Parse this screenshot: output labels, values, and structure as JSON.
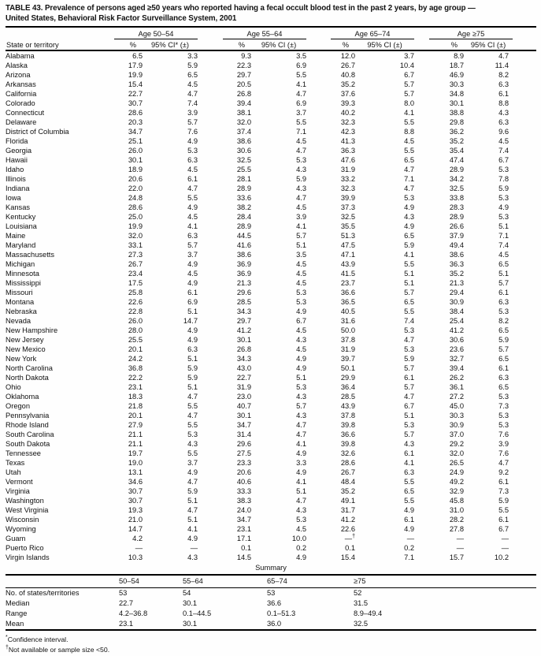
{
  "title_line1": "TABLE 43. Prevalence of persons aged ≥50 years who reported having a fecal occult blood test in the past 2 years, by age group —",
  "title_line2": "United States, Behavioral Risk Factor Surveillance System, 2001",
  "table": {
    "stub_header": "State or territory",
    "age_groups": [
      {
        "label": "Age 50–54",
        "pct_header": "%",
        "ci_header": "95% CI* (±)"
      },
      {
        "label": "Age 55–64",
        "pct_header": "%",
        "ci_header": "95% CI (±)"
      },
      {
        "label": "Age 65–74",
        "pct_header": "%",
        "ci_header": "95% CI (±)"
      },
      {
        "label": "Age ≥75",
        "pct_header": "%",
        "ci_header": "95% CI (±)"
      }
    ],
    "rows": [
      {
        "state": "Alabama",
        "values": [
          "6.5",
          "3.3",
          "9.3",
          "3.5",
          "12.0",
          "3.7",
          "8.9",
          "4.7"
        ]
      },
      {
        "state": "Alaska",
        "values": [
          "17.9",
          "5.9",
          "22.3",
          "6.9",
          "26.7",
          "10.4",
          "18.7",
          "11.4"
        ]
      },
      {
        "state": "Arizona",
        "values": [
          "19.9",
          "6.5",
          "29.7",
          "5.5",
          "40.8",
          "6.7",
          "46.9",
          "8.2"
        ]
      },
      {
        "state": "Arkansas",
        "values": [
          "15.4",
          "4.5",
          "20.5",
          "4.1",
          "35.2",
          "5.7",
          "30.3",
          "6.3"
        ]
      },
      {
        "state": "California",
        "values": [
          "22.7",
          "4.7",
          "26.8",
          "4.7",
          "37.6",
          "5.7",
          "34.8",
          "6.1"
        ]
      },
      {
        "state": "Colorado",
        "values": [
          "30.7",
          "7.4",
          "39.4",
          "6.9",
          "39.3",
          "8.0",
          "30.1",
          "8.8"
        ]
      },
      {
        "state": "Connecticut",
        "values": [
          "28.6",
          "3.9",
          "38.1",
          "3.7",
          "40.2",
          "4.1",
          "38.8",
          "4.3"
        ]
      },
      {
        "state": "Delaware",
        "values": [
          "20.3",
          "5.7",
          "32.0",
          "5.5",
          "32.3",
          "5.5",
          "29.8",
          "6.3"
        ]
      },
      {
        "state": "District of Columbia",
        "values": [
          "34.7",
          "7.6",
          "37.4",
          "7.1",
          "42.3",
          "8.8",
          "36.2",
          "9.6"
        ]
      },
      {
        "state": "Florida",
        "values": [
          "25.1",
          "4.9",
          "38.6",
          "4.5",
          "41.3",
          "4.5",
          "35.2",
          "4.5"
        ]
      },
      {
        "state": "Georgia",
        "values": [
          "26.0",
          "5.3",
          "30.6",
          "4.7",
          "36.3",
          "5.5",
          "35.4",
          "7.4"
        ]
      },
      {
        "state": "Hawaii",
        "values": [
          "30.1",
          "6.3",
          "32.5",
          "5.3",
          "47.6",
          "6.5",
          "47.4",
          "6.7"
        ]
      },
      {
        "state": "Idaho",
        "values": [
          "18.9",
          "4.5",
          "25.5",
          "4.3",
          "31.9",
          "4.7",
          "28.9",
          "5.3"
        ]
      },
      {
        "state": "Illinois",
        "values": [
          "20.6",
          "6.1",
          "28.1",
          "5.9",
          "33.2",
          "7.1",
          "34.2",
          "7.8"
        ]
      },
      {
        "state": "Indiana",
        "values": [
          "22.0",
          "4.7",
          "28.9",
          "4.3",
          "32.3",
          "4.7",
          "32.5",
          "5.9"
        ]
      },
      {
        "state": "Iowa",
        "values": [
          "24.8",
          "5.5",
          "33.6",
          "4.7",
          "39.9",
          "5.3",
          "33.8",
          "5.3"
        ]
      },
      {
        "state": "Kansas",
        "values": [
          "28.6",
          "4.9",
          "38.2",
          "4.5",
          "37.3",
          "4.9",
          "28.3",
          "4.9"
        ]
      },
      {
        "state": "Kentucky",
        "values": [
          "25.0",
          "4.5",
          "28.4",
          "3.9",
          "32.5",
          "4.3",
          "28.9",
          "5.3"
        ]
      },
      {
        "state": "Louisiana",
        "values": [
          "19.9",
          "4.1",
          "28.9",
          "4.1",
          "35.5",
          "4.9",
          "26.6",
          "5.1"
        ]
      },
      {
        "state": "Maine",
        "values": [
          "32.0",
          "6.3",
          "44.5",
          "5.7",
          "51.3",
          "6.5",
          "37.9",
          "7.1"
        ]
      },
      {
        "state": "Maryland",
        "values": [
          "33.1",
          "5.7",
          "41.6",
          "5.1",
          "47.5",
          "5.9",
          "49.4",
          "7.4"
        ]
      },
      {
        "state": "Massachusetts",
        "values": [
          "27.3",
          "3.7",
          "38.6",
          "3.5",
          "47.1",
          "4.1",
          "38.6",
          "4.5"
        ]
      },
      {
        "state": "Michigan",
        "values": [
          "26.7",
          "4.9",
          "36.9",
          "4.5",
          "43.9",
          "5.5",
          "36.3",
          "6.5"
        ]
      },
      {
        "state": "Minnesota",
        "values": [
          "23.4",
          "4.5",
          "36.9",
          "4.5",
          "41.5",
          "5.1",
          "35.2",
          "5.1"
        ]
      },
      {
        "state": "Mississippi",
        "values": [
          "17.5",
          "4.9",
          "21.3",
          "4.5",
          "23.7",
          "5.1",
          "21.3",
          "5.7"
        ]
      },
      {
        "state": "Missouri",
        "values": [
          "25.8",
          "6.1",
          "29.6",
          "5.3",
          "36.6",
          "5.7",
          "29.4",
          "6.1"
        ]
      },
      {
        "state": "Montana",
        "values": [
          "22.6",
          "6.9",
          "28.5",
          "5.3",
          "36.5",
          "6.5",
          "30.9",
          "6.3"
        ]
      },
      {
        "state": "Nebraska",
        "values": [
          "22.8",
          "5.1",
          "34.3",
          "4.9",
          "40.5",
          "5.5",
          "38.4",
          "5.3"
        ]
      },
      {
        "state": "Nevada",
        "values": [
          "26.0",
          "14.7",
          "29.7",
          "6.7",
          "31.6",
          "7.4",
          "25.4",
          "8.2"
        ]
      },
      {
        "state": "New Hampshire",
        "values": [
          "28.0",
          "4.9",
          "41.2",
          "4.5",
          "50.0",
          "5.3",
          "41.2",
          "6.5"
        ]
      },
      {
        "state": "New Jersey",
        "values": [
          "25.5",
          "4.9",
          "30.1",
          "4.3",
          "37.8",
          "4.7",
          "30.6",
          "5.9"
        ]
      },
      {
        "state": "New Mexico",
        "values": [
          "20.1",
          "6.3",
          "26.8",
          "4.5",
          "31.9",
          "5.3",
          "23.6",
          "5.7"
        ]
      },
      {
        "state": "New York",
        "values": [
          "24.2",
          "5.1",
          "34.3",
          "4.9",
          "39.7",
          "5.9",
          "32.7",
          "6.5"
        ]
      },
      {
        "state": "North Carolina",
        "values": [
          "36.8",
          "5.9",
          "43.0",
          "4.9",
          "50.1",
          "5.7",
          "39.4",
          "6.1"
        ]
      },
      {
        "state": "North Dakota",
        "values": [
          "22.2",
          "5.9",
          "22.7",
          "5.1",
          "29.9",
          "6.1",
          "26.2",
          "6.3"
        ]
      },
      {
        "state": "Ohio",
        "values": [
          "23.1",
          "5.1",
          "31.9",
          "5.3",
          "36.4",
          "5.7",
          "36.1",
          "6.5"
        ]
      },
      {
        "state": "Oklahoma",
        "values": [
          "18.3",
          "4.7",
          "23.0",
          "4.3",
          "28.5",
          "4.7",
          "27.2",
          "5.3"
        ]
      },
      {
        "state": "Oregon",
        "values": [
          "21.8",
          "5.5",
          "40.7",
          "5.7",
          "43.9",
          "6.7",
          "45.0",
          "7.3"
        ]
      },
      {
        "state": "Pennsylvania",
        "values": [
          "20.1",
          "4.7",
          "30.1",
          "4.3",
          "37.8",
          "5.1",
          "30.3",
          "5.3"
        ]
      },
      {
        "state": "Rhode Island",
        "values": [
          "27.9",
          "5.5",
          "34.7",
          "4.7",
          "39.8",
          "5.3",
          "30.9",
          "5.3"
        ]
      },
      {
        "state": "South Carolina",
        "values": [
          "21.1",
          "5.3",
          "31.4",
          "4.7",
          "36.6",
          "5.7",
          "37.0",
          "7.6"
        ]
      },
      {
        "state": "South Dakota",
        "values": [
          "21.1",
          "4.3",
          "29.6",
          "4.1",
          "39.8",
          "4.3",
          "29.2",
          "3.9"
        ]
      },
      {
        "state": "Tennessee",
        "values": [
          "19.7",
          "5.5",
          "27.5",
          "4.9",
          "32.6",
          "6.1",
          "32.0",
          "7.6"
        ]
      },
      {
        "state": "Texas",
        "values": [
          "19.0",
          "3.7",
          "23.3",
          "3.3",
          "28.6",
          "4.1",
          "26.5",
          "4.7"
        ]
      },
      {
        "state": "Utah",
        "values": [
          "13.1",
          "4.9",
          "20.6",
          "4.9",
          "26.7",
          "6.3",
          "24.9",
          "9.2"
        ]
      },
      {
        "state": "Vermont",
        "values": [
          "34.6",
          "4.7",
          "40.6",
          "4.1",
          "48.4",
          "5.5",
          "49.2",
          "6.1"
        ]
      },
      {
        "state": "Virginia",
        "values": [
          "30.7",
          "5.9",
          "33.3",
          "5.1",
          "35.2",
          "6.5",
          "32.9",
          "7.3"
        ]
      },
      {
        "state": "Washington",
        "values": [
          "30.7",
          "5.1",
          "38.3",
          "4.7",
          "49.1",
          "5.5",
          "45.8",
          "5.9"
        ]
      },
      {
        "state": "West Virginia",
        "values": [
          "19.3",
          "4.7",
          "24.0",
          "4.3",
          "31.7",
          "4.9",
          "31.0",
          "5.5"
        ]
      },
      {
        "state": "Wisconsin",
        "values": [
          "21.0",
          "5.1",
          "34.7",
          "5.3",
          "41.2",
          "6.1",
          "28.2",
          "6.1"
        ]
      },
      {
        "state": "Wyoming",
        "values": [
          "14.7",
          "4.1",
          "23.1",
          "4.5",
          "22.6",
          "4.9",
          "27.8",
          "6.7"
        ]
      },
      {
        "state": "Guam",
        "values": [
          "4.2",
          "4.9",
          "17.1",
          "10.0",
          "—†",
          "—",
          "—",
          "—"
        ]
      },
      {
        "state": "Puerto Rico",
        "values": [
          "—",
          "—",
          "0.1",
          "0.2",
          "0.1",
          "0.2",
          "—",
          "—"
        ]
      },
      {
        "state": "Virgin Islands",
        "values": [
          "10.3",
          "4.3",
          "14.5",
          "4.9",
          "15.4",
          "7.1",
          "15.7",
          "10.2"
        ]
      }
    ]
  },
  "summary": {
    "title": "Summary",
    "columns": [
      "50–54",
      "55–64",
      "65–74",
      "≥75"
    ],
    "rows": [
      {
        "label": "No. of states/territories",
        "values": [
          "53",
          "54",
          "53",
          "52"
        ]
      },
      {
        "label": "Median",
        "values": [
          "22.7",
          "30.1",
          "36.6",
          "31.5"
        ]
      },
      {
        "label": "Range",
        "values": [
          "4.2–36.8",
          "0.1–44.5",
          "0.1–51.3",
          "8.9–49.4"
        ]
      },
      {
        "label": "Mean",
        "values": [
          "23.1",
          "30.1",
          "36.0",
          "32.5"
        ]
      }
    ]
  },
  "footnotes": [
    {
      "marker": "*",
      "text": "Confidence interval."
    },
    {
      "marker": "†",
      "text": "Not available or sample size <50."
    }
  ]
}
